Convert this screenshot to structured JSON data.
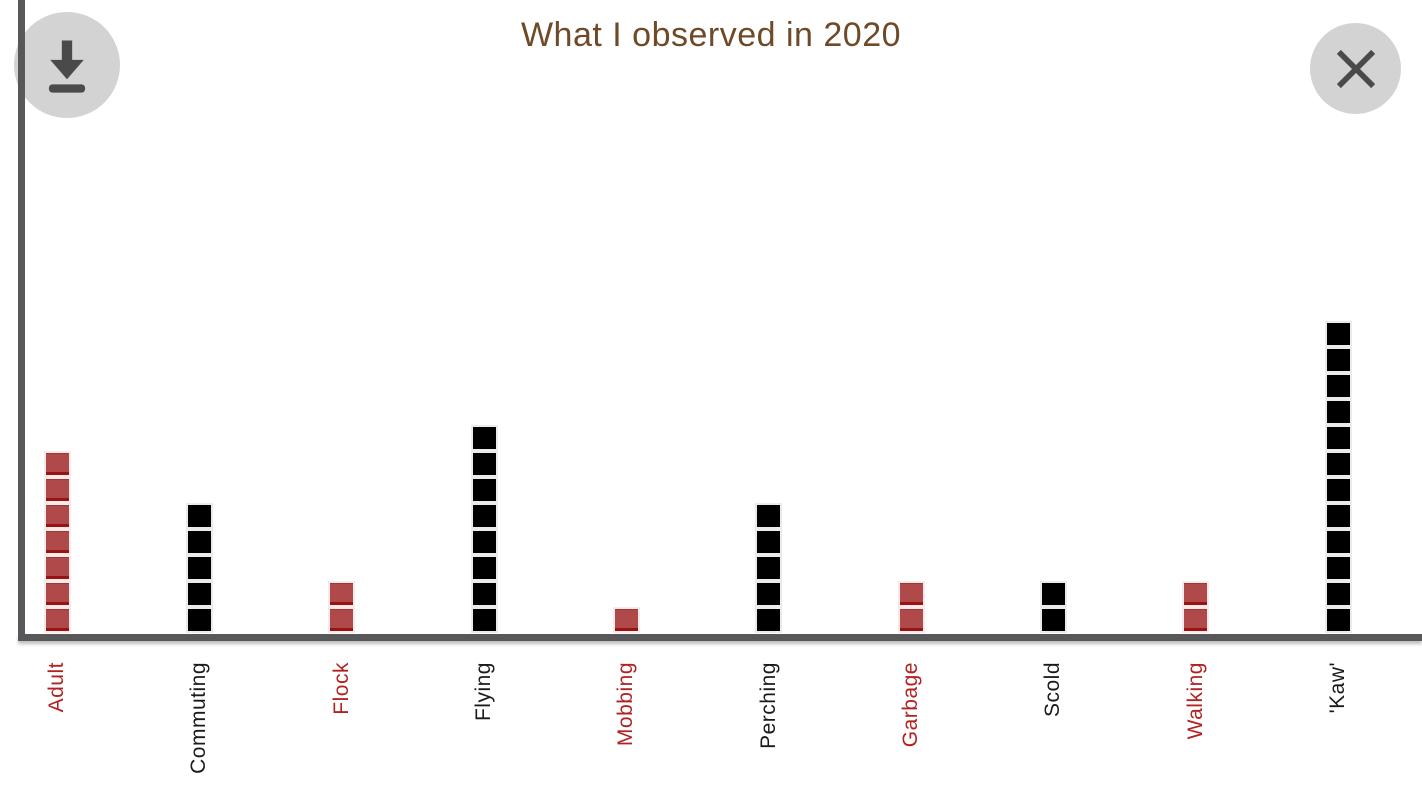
{
  "header": {
    "title": "What I observed in 2020"
  },
  "toolbar": {
    "download_icon": "download-icon",
    "close_icon": "close-icon"
  },
  "colors": {
    "title_brown": "#6f4a28",
    "axis_gray": "#58585a",
    "square_red_fill": "#b04949",
    "square_red_edge": "#9a1212",
    "square_black_fill": "#000000",
    "label_red": "#b22222",
    "label_black": "#1a1a1a",
    "button_gray": "#d3d3d3",
    "icon_gray": "#4a4a4a"
  },
  "chart_data": {
    "type": "bar",
    "subtype": "unit-square-columns",
    "title": "What I observed in 2020",
    "xlabel": "",
    "ylabel": "",
    "unit": "1 square = 1 observation",
    "grid": false,
    "legend": false,
    "ylim": [
      0,
      12
    ],
    "categories": [
      "Adult",
      "Commuting",
      "Flock",
      "Flying",
      "Mobbing",
      "Perching",
      "Garbage",
      "Scold",
      "Walking",
      "'Kaw'"
    ],
    "values": [
      7,
      5,
      2,
      8,
      1,
      5,
      2,
      2,
      2,
      12
    ],
    "series_colors": [
      "red",
      "black",
      "red",
      "black",
      "red",
      "black",
      "red",
      "black",
      "red",
      "black"
    ]
  }
}
